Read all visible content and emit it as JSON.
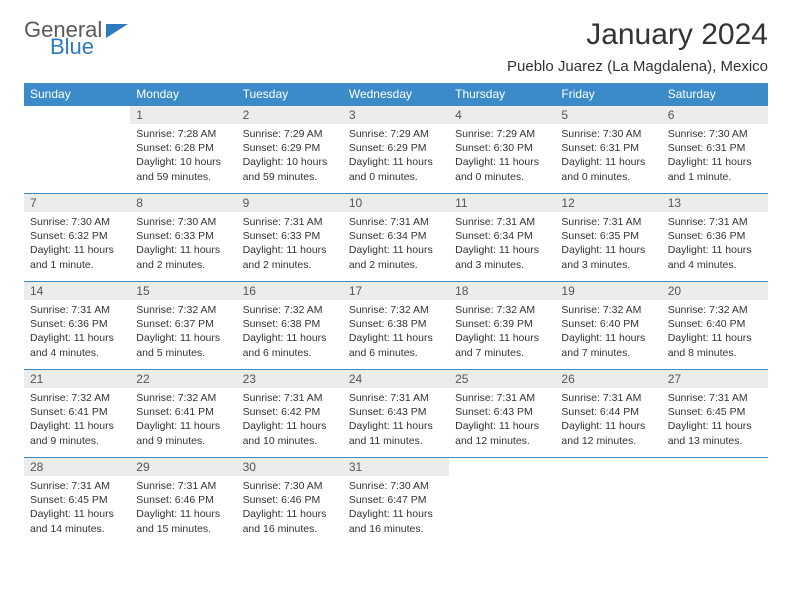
{
  "brand": {
    "word1": "General",
    "word2": "Blue"
  },
  "title": "January 2024",
  "location": "Pueblo Juarez (La Magdalena), Mexico",
  "colors": {
    "header_bg": "#3b8bc9",
    "header_fg": "#ffffff",
    "daynum_bg": "#ececec",
    "daynum_fg": "#555555",
    "text": "#333333",
    "rule": "#3b8bc9",
    "brand_gray": "#5a5a5a",
    "brand_blue": "#2f7abf"
  },
  "typography": {
    "title_fontsize": 30,
    "location_fontsize": 15,
    "weekday_fontsize": 12,
    "daynum_fontsize": 12,
    "body_fontsize": 10.5
  },
  "weekdays": [
    "Sunday",
    "Monday",
    "Tuesday",
    "Wednesday",
    "Thursday",
    "Friday",
    "Saturday"
  ],
  "weeks": [
    [
      null,
      {
        "n": "1",
        "sunrise": "Sunrise: 7:28 AM",
        "sunset": "Sunset: 6:28 PM",
        "daylight": "Daylight: 10 hours and 59 minutes."
      },
      {
        "n": "2",
        "sunrise": "Sunrise: 7:29 AM",
        "sunset": "Sunset: 6:29 PM",
        "daylight": "Daylight: 10 hours and 59 minutes."
      },
      {
        "n": "3",
        "sunrise": "Sunrise: 7:29 AM",
        "sunset": "Sunset: 6:29 PM",
        "daylight": "Daylight: 11 hours and 0 minutes."
      },
      {
        "n": "4",
        "sunrise": "Sunrise: 7:29 AM",
        "sunset": "Sunset: 6:30 PM",
        "daylight": "Daylight: 11 hours and 0 minutes."
      },
      {
        "n": "5",
        "sunrise": "Sunrise: 7:30 AM",
        "sunset": "Sunset: 6:31 PM",
        "daylight": "Daylight: 11 hours and 0 minutes."
      },
      {
        "n": "6",
        "sunrise": "Sunrise: 7:30 AM",
        "sunset": "Sunset: 6:31 PM",
        "daylight": "Daylight: 11 hours and 1 minute."
      }
    ],
    [
      {
        "n": "7",
        "sunrise": "Sunrise: 7:30 AM",
        "sunset": "Sunset: 6:32 PM",
        "daylight": "Daylight: 11 hours and 1 minute."
      },
      {
        "n": "8",
        "sunrise": "Sunrise: 7:30 AM",
        "sunset": "Sunset: 6:33 PM",
        "daylight": "Daylight: 11 hours and 2 minutes."
      },
      {
        "n": "9",
        "sunrise": "Sunrise: 7:31 AM",
        "sunset": "Sunset: 6:33 PM",
        "daylight": "Daylight: 11 hours and 2 minutes."
      },
      {
        "n": "10",
        "sunrise": "Sunrise: 7:31 AM",
        "sunset": "Sunset: 6:34 PM",
        "daylight": "Daylight: 11 hours and 2 minutes."
      },
      {
        "n": "11",
        "sunrise": "Sunrise: 7:31 AM",
        "sunset": "Sunset: 6:34 PM",
        "daylight": "Daylight: 11 hours and 3 minutes."
      },
      {
        "n": "12",
        "sunrise": "Sunrise: 7:31 AM",
        "sunset": "Sunset: 6:35 PM",
        "daylight": "Daylight: 11 hours and 3 minutes."
      },
      {
        "n": "13",
        "sunrise": "Sunrise: 7:31 AM",
        "sunset": "Sunset: 6:36 PM",
        "daylight": "Daylight: 11 hours and 4 minutes."
      }
    ],
    [
      {
        "n": "14",
        "sunrise": "Sunrise: 7:31 AM",
        "sunset": "Sunset: 6:36 PM",
        "daylight": "Daylight: 11 hours and 4 minutes."
      },
      {
        "n": "15",
        "sunrise": "Sunrise: 7:32 AM",
        "sunset": "Sunset: 6:37 PM",
        "daylight": "Daylight: 11 hours and 5 minutes."
      },
      {
        "n": "16",
        "sunrise": "Sunrise: 7:32 AM",
        "sunset": "Sunset: 6:38 PM",
        "daylight": "Daylight: 11 hours and 6 minutes."
      },
      {
        "n": "17",
        "sunrise": "Sunrise: 7:32 AM",
        "sunset": "Sunset: 6:38 PM",
        "daylight": "Daylight: 11 hours and 6 minutes."
      },
      {
        "n": "18",
        "sunrise": "Sunrise: 7:32 AM",
        "sunset": "Sunset: 6:39 PM",
        "daylight": "Daylight: 11 hours and 7 minutes."
      },
      {
        "n": "19",
        "sunrise": "Sunrise: 7:32 AM",
        "sunset": "Sunset: 6:40 PM",
        "daylight": "Daylight: 11 hours and 7 minutes."
      },
      {
        "n": "20",
        "sunrise": "Sunrise: 7:32 AM",
        "sunset": "Sunset: 6:40 PM",
        "daylight": "Daylight: 11 hours and 8 minutes."
      }
    ],
    [
      {
        "n": "21",
        "sunrise": "Sunrise: 7:32 AM",
        "sunset": "Sunset: 6:41 PM",
        "daylight": "Daylight: 11 hours and 9 minutes."
      },
      {
        "n": "22",
        "sunrise": "Sunrise: 7:32 AM",
        "sunset": "Sunset: 6:41 PM",
        "daylight": "Daylight: 11 hours and 9 minutes."
      },
      {
        "n": "23",
        "sunrise": "Sunrise: 7:31 AM",
        "sunset": "Sunset: 6:42 PM",
        "daylight": "Daylight: 11 hours and 10 minutes."
      },
      {
        "n": "24",
        "sunrise": "Sunrise: 7:31 AM",
        "sunset": "Sunset: 6:43 PM",
        "daylight": "Daylight: 11 hours and 11 minutes."
      },
      {
        "n": "25",
        "sunrise": "Sunrise: 7:31 AM",
        "sunset": "Sunset: 6:43 PM",
        "daylight": "Daylight: 11 hours and 12 minutes."
      },
      {
        "n": "26",
        "sunrise": "Sunrise: 7:31 AM",
        "sunset": "Sunset: 6:44 PM",
        "daylight": "Daylight: 11 hours and 12 minutes."
      },
      {
        "n": "27",
        "sunrise": "Sunrise: 7:31 AM",
        "sunset": "Sunset: 6:45 PM",
        "daylight": "Daylight: 11 hours and 13 minutes."
      }
    ],
    [
      {
        "n": "28",
        "sunrise": "Sunrise: 7:31 AM",
        "sunset": "Sunset: 6:45 PM",
        "daylight": "Daylight: 11 hours and 14 minutes."
      },
      {
        "n": "29",
        "sunrise": "Sunrise: 7:31 AM",
        "sunset": "Sunset: 6:46 PM",
        "daylight": "Daylight: 11 hours and 15 minutes."
      },
      {
        "n": "30",
        "sunrise": "Sunrise: 7:30 AM",
        "sunset": "Sunset: 6:46 PM",
        "daylight": "Daylight: 11 hours and 16 minutes."
      },
      {
        "n": "31",
        "sunrise": "Sunrise: 7:30 AM",
        "sunset": "Sunset: 6:47 PM",
        "daylight": "Daylight: 11 hours and 16 minutes."
      },
      null,
      null,
      null
    ]
  ]
}
